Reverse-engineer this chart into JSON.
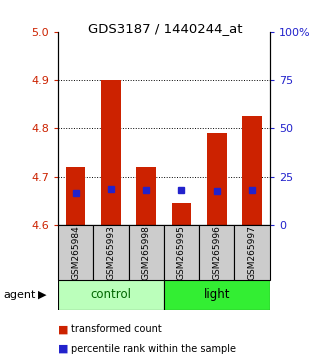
{
  "title": "GDS3187 / 1440244_at",
  "samples": [
    "GSM265984",
    "GSM265993",
    "GSM265998",
    "GSM265995",
    "GSM265996",
    "GSM265997"
  ],
  "red_values": [
    4.72,
    4.9,
    4.72,
    4.645,
    4.79,
    4.825
  ],
  "blue_values": [
    4.665,
    4.675,
    4.672,
    4.672,
    4.67,
    4.672
  ],
  "ymin": 4.6,
  "ymax": 5.0,
  "yticks": [
    4.6,
    4.7,
    4.8,
    4.9,
    5.0
  ],
  "right_ytick_positions": [
    4.6,
    4.7,
    4.8,
    4.9,
    5.0
  ],
  "right_ytick_labels": [
    "0",
    "25",
    "50",
    "75",
    "100%"
  ],
  "bar_bottom": 4.6,
  "bar_width": 0.55,
  "red_color": "#cc2200",
  "blue_color": "#2222cc",
  "control_color": "#bbffbb",
  "light_color": "#33ee33",
  "group_text_control_color": "#006600",
  "group_text_light_color": "#004400",
  "tick_color_left": "#cc2200",
  "tick_color_right": "#2222cc",
  "sample_bg": "#cccccc",
  "agent_label": "agent",
  "control_label": "control",
  "light_label": "light",
  "legend_red_label": "transformed count",
  "legend_blue_label": "percentile rank within the sample"
}
